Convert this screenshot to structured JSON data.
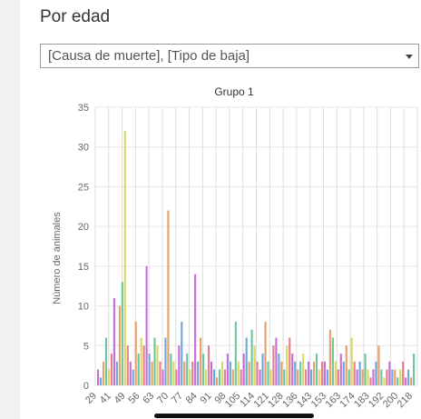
{
  "header": {
    "title": "Por edad"
  },
  "filter": {
    "value": "[Causa de muerte], [Tipo de baja]"
  },
  "colors": [
    "#c471d6",
    "#6fa8d8",
    "#e7a06a",
    "#6fc4a0",
    "#d8d866",
    "#e77e8e"
  ],
  "chart_data": {
    "type": "bar",
    "title": "Grupo 1",
    "ylabel": "Número de animales",
    "ylim": [
      0,
      35
    ],
    "yticks": [
      0,
      5,
      10,
      15,
      20,
      25,
      30,
      35
    ],
    "x_tick_labels": [
      "29",
      "41",
      "49",
      "56",
      "63",
      "70",
      "77",
      "84",
      "91",
      "98",
      "105",
      "114",
      "121",
      "128",
      "136",
      "143",
      "153",
      "163",
      "174",
      "183",
      "192",
      "200",
      "218"
    ],
    "grid": true,
    "values": [
      2,
      1,
      3,
      6,
      2,
      4,
      11,
      3,
      10,
      13,
      32,
      5,
      3,
      2,
      8,
      4,
      6,
      5,
      15,
      4,
      3,
      6,
      5,
      3,
      2,
      6,
      22,
      4,
      3,
      2,
      5,
      8,
      3,
      4,
      2,
      3,
      14,
      3,
      6,
      4,
      2,
      5,
      3,
      2,
      1,
      2,
      3,
      2,
      4,
      3,
      2,
      8,
      3,
      2,
      4,
      6,
      3,
      7,
      5,
      3,
      2,
      4,
      8,
      3,
      2,
      5,
      6,
      4,
      3,
      2,
      5,
      6,
      4,
      3,
      2,
      3,
      4,
      2,
      3,
      2,
      3,
      4,
      2,
      3,
      3,
      2,
      7,
      6,
      3,
      2,
      4,
      3,
      5,
      2,
      6,
      3,
      2,
      3,
      2,
      4,
      2,
      1,
      2,
      3,
      5,
      2,
      1,
      2,
      3,
      2,
      2,
      1,
      2,
      3,
      1,
      2,
      1,
      4
    ]
  }
}
